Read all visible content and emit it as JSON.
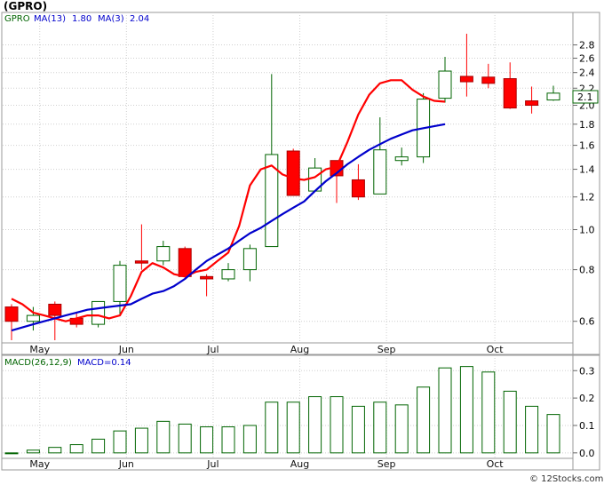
{
  "title": "(GPRO)",
  "credit": "© 12Stocks.com",
  "colors": {
    "up": "#006400",
    "down": "#ff0000",
    "ma_short": "#ff0000",
    "ma_long": "#0000cc",
    "grid": "#cfcfcf",
    "macd_bar": "#006400"
  },
  "chart_data": [
    {
      "type": "candlestick",
      "name": "price",
      "legend": {
        "ticker": "GPRO",
        "ma13_label": "MA(13)",
        "ma13_value": "1.80",
        "ma3_label": "MA(3)",
        "ma3_value": "2.04"
      },
      "last_price_label": "2.1",
      "log_scale": true,
      "ylim": [
        0.54,
        3.1
      ],
      "yticks": [
        0.6,
        0.8,
        1.0,
        1.2,
        1.4,
        1.6,
        1.8,
        2.0,
        2.2,
        2.4,
        2.6,
        2.8
      ],
      "ytick_labels": [
        "0.6",
        "0.8",
        "1.0",
        "1.2",
        "1.4",
        "1.6",
        "1.8",
        "2.0",
        "2.2",
        "2.4",
        "2.6",
        "2.8"
      ],
      "x_labels": [
        "May",
        "Jun",
        "Jul",
        "Aug",
        "Sep",
        "Oct"
      ],
      "x_label_positions": [
        1.3,
        5.3,
        9.3,
        13.3,
        17.3,
        22.3
      ],
      "candles": [
        {
          "o": 0.65,
          "h": 0.66,
          "l": 0.54,
          "c": 0.6
        },
        {
          "o": 0.6,
          "h": 0.65,
          "l": 0.57,
          "c": 0.62
        },
        {
          "o": 0.66,
          "h": 0.67,
          "l": 0.54,
          "c": 0.62
        },
        {
          "o": 0.61,
          "h": 0.63,
          "l": 0.58,
          "c": 0.59
        },
        {
          "o": 0.59,
          "h": 0.67,
          "l": 0.58,
          "c": 0.67
        },
        {
          "o": 0.67,
          "h": 0.84,
          "l": 0.62,
          "c": 0.82
        },
        {
          "o": 0.84,
          "h": 1.03,
          "l": 0.8,
          "c": 0.83
        },
        {
          "o": 0.84,
          "h": 0.94,
          "l": 0.82,
          "c": 0.91
        },
        {
          "o": 0.9,
          "h": 0.91,
          "l": 0.77,
          "c": 0.77
        },
        {
          "o": 0.77,
          "h": 0.78,
          "l": 0.69,
          "c": 0.76
        },
        {
          "o": 0.76,
          "h": 0.83,
          "l": 0.75,
          "c": 0.8
        },
        {
          "o": 0.8,
          "h": 0.92,
          "l": 0.75,
          "c": 0.9
        },
        {
          "o": 0.91,
          "h": 2.38,
          "l": 0.91,
          "c": 1.52
        },
        {
          "o": 1.55,
          "h": 1.57,
          "l": 1.21,
          "c": 1.21
        },
        {
          "o": 1.24,
          "h": 1.49,
          "l": 1.24,
          "c": 1.41
        },
        {
          "o": 1.47,
          "h": 1.47,
          "l": 1.16,
          "c": 1.35
        },
        {
          "o": 1.32,
          "h": 1.44,
          "l": 1.18,
          "c": 1.2
        },
        {
          "o": 1.22,
          "h": 1.87,
          "l": 1.22,
          "c": 1.56
        },
        {
          "o": 1.47,
          "h": 1.58,
          "l": 1.43,
          "c": 1.5
        },
        {
          "o": 1.5,
          "h": 2.14,
          "l": 1.45,
          "c": 2.07
        },
        {
          "o": 2.08,
          "h": 2.62,
          "l": 2.03,
          "c": 2.42
        },
        {
          "o": 2.35,
          "h": 2.98,
          "l": 2.1,
          "c": 2.28
        },
        {
          "o": 2.34,
          "h": 2.52,
          "l": 2.2,
          "c": 2.26
        },
        {
          "o": 2.32,
          "h": 2.54,
          "l": 1.96,
          "c": 1.97
        },
        {
          "o": 2.05,
          "h": 2.22,
          "l": 1.91,
          "c": 2.0
        },
        {
          "o": 2.06,
          "h": 2.23,
          "l": 2.05,
          "c": 2.14
        }
      ],
      "ma3": [
        0.68,
        0.66,
        0.63,
        0.62,
        0.61,
        0.6,
        0.61,
        0.62,
        0.62,
        0.61,
        0.62,
        0.69,
        0.79,
        0.83,
        0.81,
        0.78,
        0.77,
        0.79,
        0.8,
        0.84,
        0.88,
        1.02,
        1.28,
        1.4,
        1.43,
        1.36,
        1.33,
        1.32,
        1.34,
        1.4,
        1.42,
        1.63,
        1.9,
        2.12,
        2.26,
        2.3,
        2.3,
        2.18,
        2.1,
        2.05,
        2.04
      ],
      "ma13": [
        0.57,
        0.58,
        0.59,
        0.6,
        0.61,
        0.62,
        0.63,
        0.64,
        0.645,
        0.65,
        0.655,
        0.66,
        0.68,
        0.7,
        0.71,
        0.73,
        0.76,
        0.8,
        0.84,
        0.87,
        0.9,
        0.94,
        0.98,
        1.01,
        1.05,
        1.09,
        1.13,
        1.17,
        1.24,
        1.31,
        1.37,
        1.44,
        1.5,
        1.56,
        1.61,
        1.66,
        1.7,
        1.74,
        1.76,
        1.78,
        1.8
      ]
    },
    {
      "type": "bar",
      "name": "macd",
      "legend": {
        "label": "MACD(26,12,9)",
        "value_label": "MACD=0.14"
      },
      "ylim": [
        -0.02,
        0.33
      ],
      "yticks": [
        0.0,
        0.1,
        0.2,
        0.3
      ],
      "ytick_labels": [
        "0.0",
        "0.1",
        "0.2",
        "0.3"
      ],
      "x_labels": [
        "May",
        "Jun",
        "Jul",
        "Aug",
        "Sep",
        "Oct"
      ],
      "x_label_positions": [
        1.3,
        5.3,
        9.3,
        13.3,
        17.3,
        22.3
      ],
      "values": [
        0.0,
        0.01,
        0.02,
        0.03,
        0.05,
        0.08,
        0.09,
        0.115,
        0.105,
        0.095,
        0.095,
        0.1,
        0.185,
        0.185,
        0.205,
        0.205,
        0.17,
        0.185,
        0.175,
        0.24,
        0.31,
        0.315,
        0.295,
        0.225,
        0.17,
        0.14
      ]
    }
  ]
}
